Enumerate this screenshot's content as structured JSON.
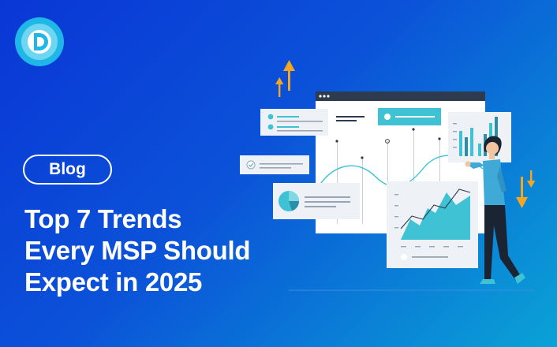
{
  "logo": {
    "icon": "logo-d-icon",
    "color": "#20b7e6"
  },
  "badge": {
    "label": "Blog"
  },
  "headline": {
    "line1": "Top 7 Trends",
    "line2": "Every MSP Should",
    "line3": "Expect in 2025"
  },
  "colors": {
    "background_start": "#0a36d6",
    "background_end": "#0aa2d6",
    "accent_teal": "#3fc2d4",
    "accent_orange": "#f4a522"
  }
}
